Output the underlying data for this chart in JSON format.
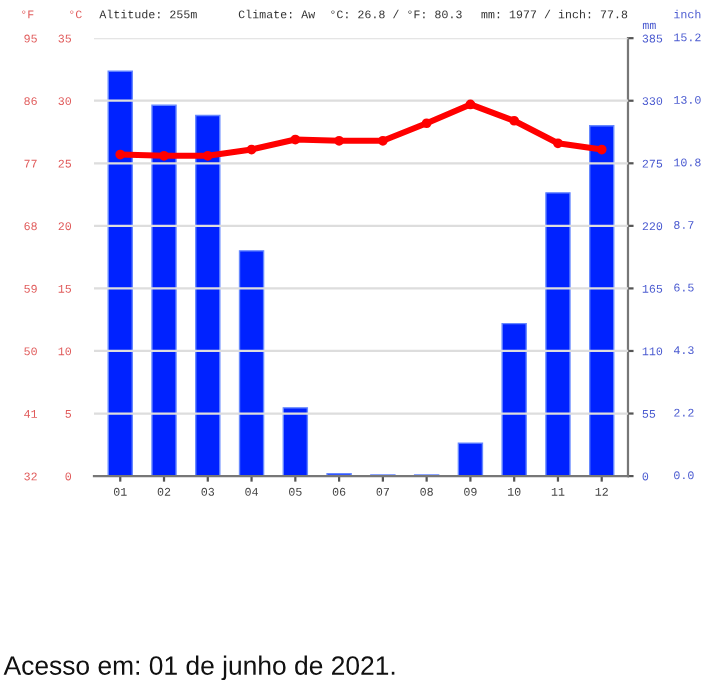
{
  "chart_data": {
    "type": "bar",
    "categories": [
      "01",
      "02",
      "03",
      "04",
      "05",
      "06",
      "07",
      "08",
      "09",
      "10",
      "11",
      "12"
    ],
    "series": [
      {
        "axis": "y2",
        "color": "#0022ff",
        "values": [
          356,
          326,
          317,
          198,
          60,
          2,
          1,
          1,
          29,
          134,
          249,
          308
        ]
      },
      {
        "type": "line",
        "axis": "y",
        "color": "#ff0000",
        "marker": "circle",
        "line_style": "solid",
        "values": [
          25.7,
          25.6,
          25.6,
          26.1,
          26.9,
          26.8,
          26.8,
          28.2,
          29.7,
          28.4,
          26.6,
          26.1
        ]
      }
    ],
    "ylabel": "°C",
    "ylim": [
      0,
      35
    ],
    "yticks": [
      0,
      5,
      10,
      15,
      20,
      25,
      30,
      35
    ],
    "y3label": "°F",
    "y3lim": [
      32,
      95
    ],
    "y3ticks": [
      32,
      41,
      50,
      59,
      68,
      77,
      86,
      95
    ],
    "y2label": "mm",
    "y2lim": [
      0,
      385
    ],
    "y2ticks": [
      0,
      55,
      110,
      165,
      220,
      275,
      330,
      385
    ],
    "grid": "y",
    "legend": false,
    "annotations": [
      "Altitude: 255m",
      "Climate: Aw",
      "°C: 26.8 / °F: 80.3",
      "mm: 1977 / inch: 77.8",
      "inch",
      "0.0",
      "2.2",
      "4.3",
      "6.5",
      "8.7",
      "10.8",
      "13.0",
      "15.2",
      "Acesso em: 01 de junho de 2021."
    ]
  }
}
